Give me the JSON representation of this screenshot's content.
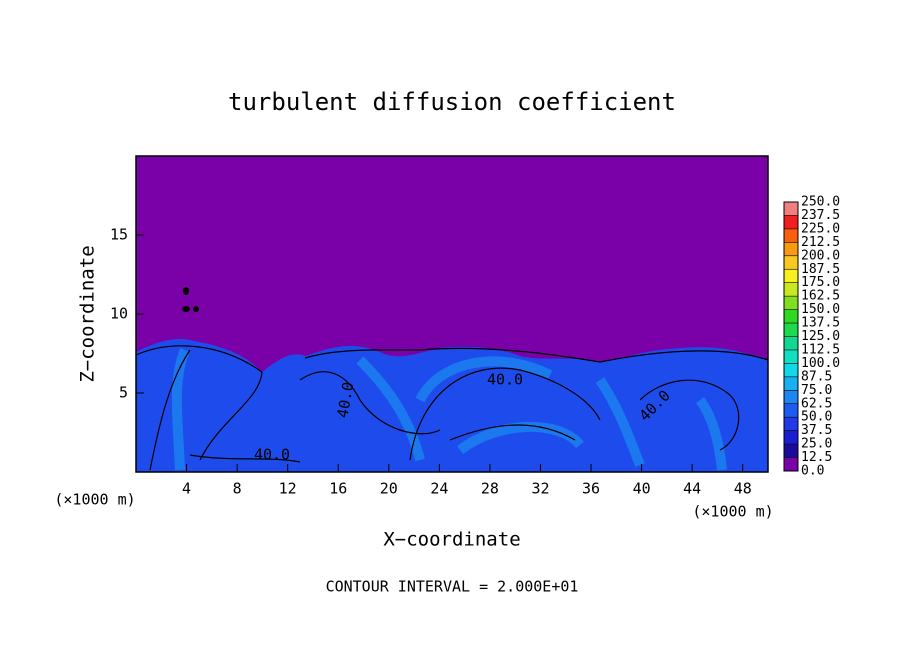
{
  "chart_data": {
    "type": "contour",
    "title": "turbulent diffusion coefficient",
    "x_label": "X−coordinate",
    "y_label": "Z−coordinate",
    "x_unit": "(×1000 m)",
    "xlim": [
      0,
      50
    ],
    "xticks": [
      4,
      8,
      12,
      16,
      20,
      24,
      28,
      32,
      36,
      40,
      44,
      48
    ],
    "ylim": [
      0,
      20
    ],
    "yticks": [
      5,
      10,
      15
    ],
    "contour_label": "40.0",
    "footnote": "CONTOUR INTERVAL = 2.000E+01",
    "colorbar": {
      "levels": [
        {
          "value": 0,
          "label": "0.0"
        },
        12.5,
        {
          "value": 25,
          "label": "25.0"
        },
        37.5,
        {
          "value": 50,
          "label": "50.0"
        },
        62.5,
        {
          "value": 75,
          "label": "75.0"
        },
        87.5,
        {
          "value": 100,
          "label": "100.0"
        },
        112.5,
        {
          "value": 125,
          "label": "125.0"
        },
        137.5,
        {
          "value": 150,
          "label": "150.0"
        },
        162.5,
        {
          "value": 175,
          "label": "175.0"
        },
        187.5,
        {
          "value": 200,
          "label": "200.0"
        },
        212.5,
        {
          "value": 225,
          "label": "225.0"
        },
        237.5,
        {
          "value": 250,
          "label": "250.0"
        }
      ],
      "colors": [
        "#7a00a8",
        "#1c0a9c",
        "#1a1ed0",
        "#1f3ae6",
        "#1e5cf0",
        "#1c86f2",
        "#18b0f0",
        "#10d8e8",
        "#10e0c0",
        "#10d890",
        "#20d850",
        "#30d820",
        "#80e020",
        "#c8e820",
        "#f8f020",
        "#f8c820",
        "#f89a10",
        "#f86010",
        "#f02020",
        "#f08080"
      ]
    }
  }
}
